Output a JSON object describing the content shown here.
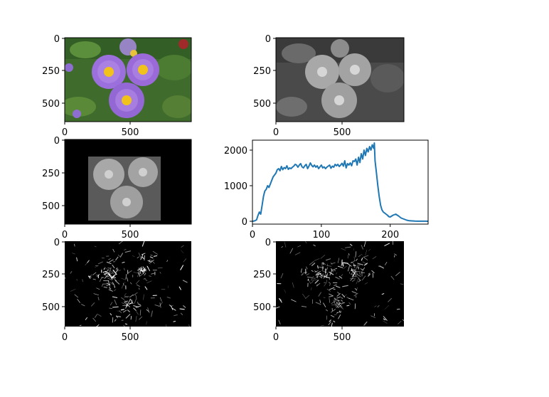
{
  "figure": {
    "panels": [
      {
        "id": "original-color",
        "kind": "image",
        "content": "color photo of purple aster flowers with yellow centers",
        "xticks": [
          "0",
          "500"
        ],
        "yticks": [
          "0",
          "250",
          "500"
        ]
      },
      {
        "id": "grayscale",
        "kind": "image",
        "content": "grayscale version of the flower photo",
        "xticks": [
          "0",
          "500"
        ],
        "yticks": [
          "0",
          "250",
          "500"
        ]
      },
      {
        "id": "masked-grayscale",
        "kind": "image",
        "content": "grayscale photo masked to a central rectangle on black",
        "xticks": [
          "0",
          "500"
        ],
        "yticks": [
          "0",
          "250",
          "500"
        ]
      },
      {
        "id": "histogram",
        "kind": "line",
        "xticks": [
          "0",
          "100",
          "200"
        ],
        "yticks": [
          "0",
          "1000",
          "2000"
        ]
      },
      {
        "id": "edges-x",
        "kind": "image",
        "content": "edge-detection (sobel x) result, white edges on black",
        "xticks": [
          "0",
          "500"
        ],
        "yticks": [
          "0",
          "250",
          "500"
        ]
      },
      {
        "id": "edges-y",
        "kind": "image",
        "content": "edge-detection (sobel y) result, white edges on black",
        "xticks": [
          "0",
          "500"
        ],
        "yticks": [
          "0",
          "250",
          "500"
        ]
      }
    ],
    "colors": {
      "line": "#1f77b4",
      "foliage": "#3f6b2d",
      "petal": "#9b6fdc",
      "center": "#f1c21b"
    }
  },
  "chart_data": [
    {
      "type": "line",
      "title": "",
      "xlabel": "",
      "ylabel": "",
      "xlim": [
        0,
        255
      ],
      "ylim": [
        -80,
        2280
      ],
      "grid": false,
      "legend": "none",
      "series": [
        {
          "x": [
            0,
            3,
            6,
            8,
            10,
            12,
            14,
            16,
            18,
            20,
            22,
            24,
            26,
            28,
            30,
            32,
            34,
            36,
            38,
            40,
            42,
            44,
            46,
            48,
            50,
            52,
            54,
            56,
            58,
            60,
            62,
            64,
            66,
            68,
            70,
            72,
            74,
            76,
            78,
            80,
            82,
            84,
            86,
            88,
            90,
            92,
            94,
            96,
            98,
            100,
            102,
            104,
            106,
            108,
            110,
            112,
            114,
            116,
            118,
            120,
            122,
            124,
            126,
            128,
            130,
            132,
            134,
            136,
            138,
            140,
            142,
            144,
            146,
            148,
            150,
            152,
            154,
            156,
            158,
            160,
            162,
            164,
            166,
            168,
            170,
            172,
            174,
            176,
            177,
            178,
            180,
            182,
            184,
            186,
            188,
            190,
            192,
            194,
            196,
            198,
            200,
            204,
            208,
            212,
            216,
            220,
            224,
            228,
            232,
            236,
            240,
            244,
            248,
            252,
            255
          ],
          "y": [
            0,
            10,
            40,
            160,
            260,
            200,
            450,
            700,
            850,
            900,
            1000,
            950,
            1050,
            1150,
            1250,
            1300,
            1350,
            1450,
            1480,
            1420,
            1540,
            1450,
            1510,
            1480,
            1560,
            1460,
            1500,
            1480,
            1520,
            1550,
            1600,
            1580,
            1520,
            1580,
            1620,
            1530,
            1500,
            1560,
            1600,
            1480,
            1550,
            1640,
            1570,
            1530,
            1580,
            1520,
            1560,
            1480,
            1530,
            1580,
            1500,
            1530,
            1480,
            1520,
            1550,
            1580,
            1490,
            1550,
            1520,
            1600,
            1560,
            1600,
            1540,
            1580,
            1630,
            1550,
            1700,
            1500,
            1620,
            1580,
            1640,
            1560,
            1700,
            1680,
            1750,
            1580,
            1800,
            1650,
            1900,
            1750,
            2000,
            1850,
            2050,
            1950,
            2100,
            2000,
            2150,
            2050,
            2200,
            1700,
            1350,
            1000,
            700,
            450,
            320,
            260,
            230,
            200,
            170,
            130,
            120,
            170,
            200,
            150,
            90,
            60,
            30,
            15,
            10,
            5,
            2,
            2,
            1,
            1,
            0
          ]
        }
      ]
    }
  ]
}
